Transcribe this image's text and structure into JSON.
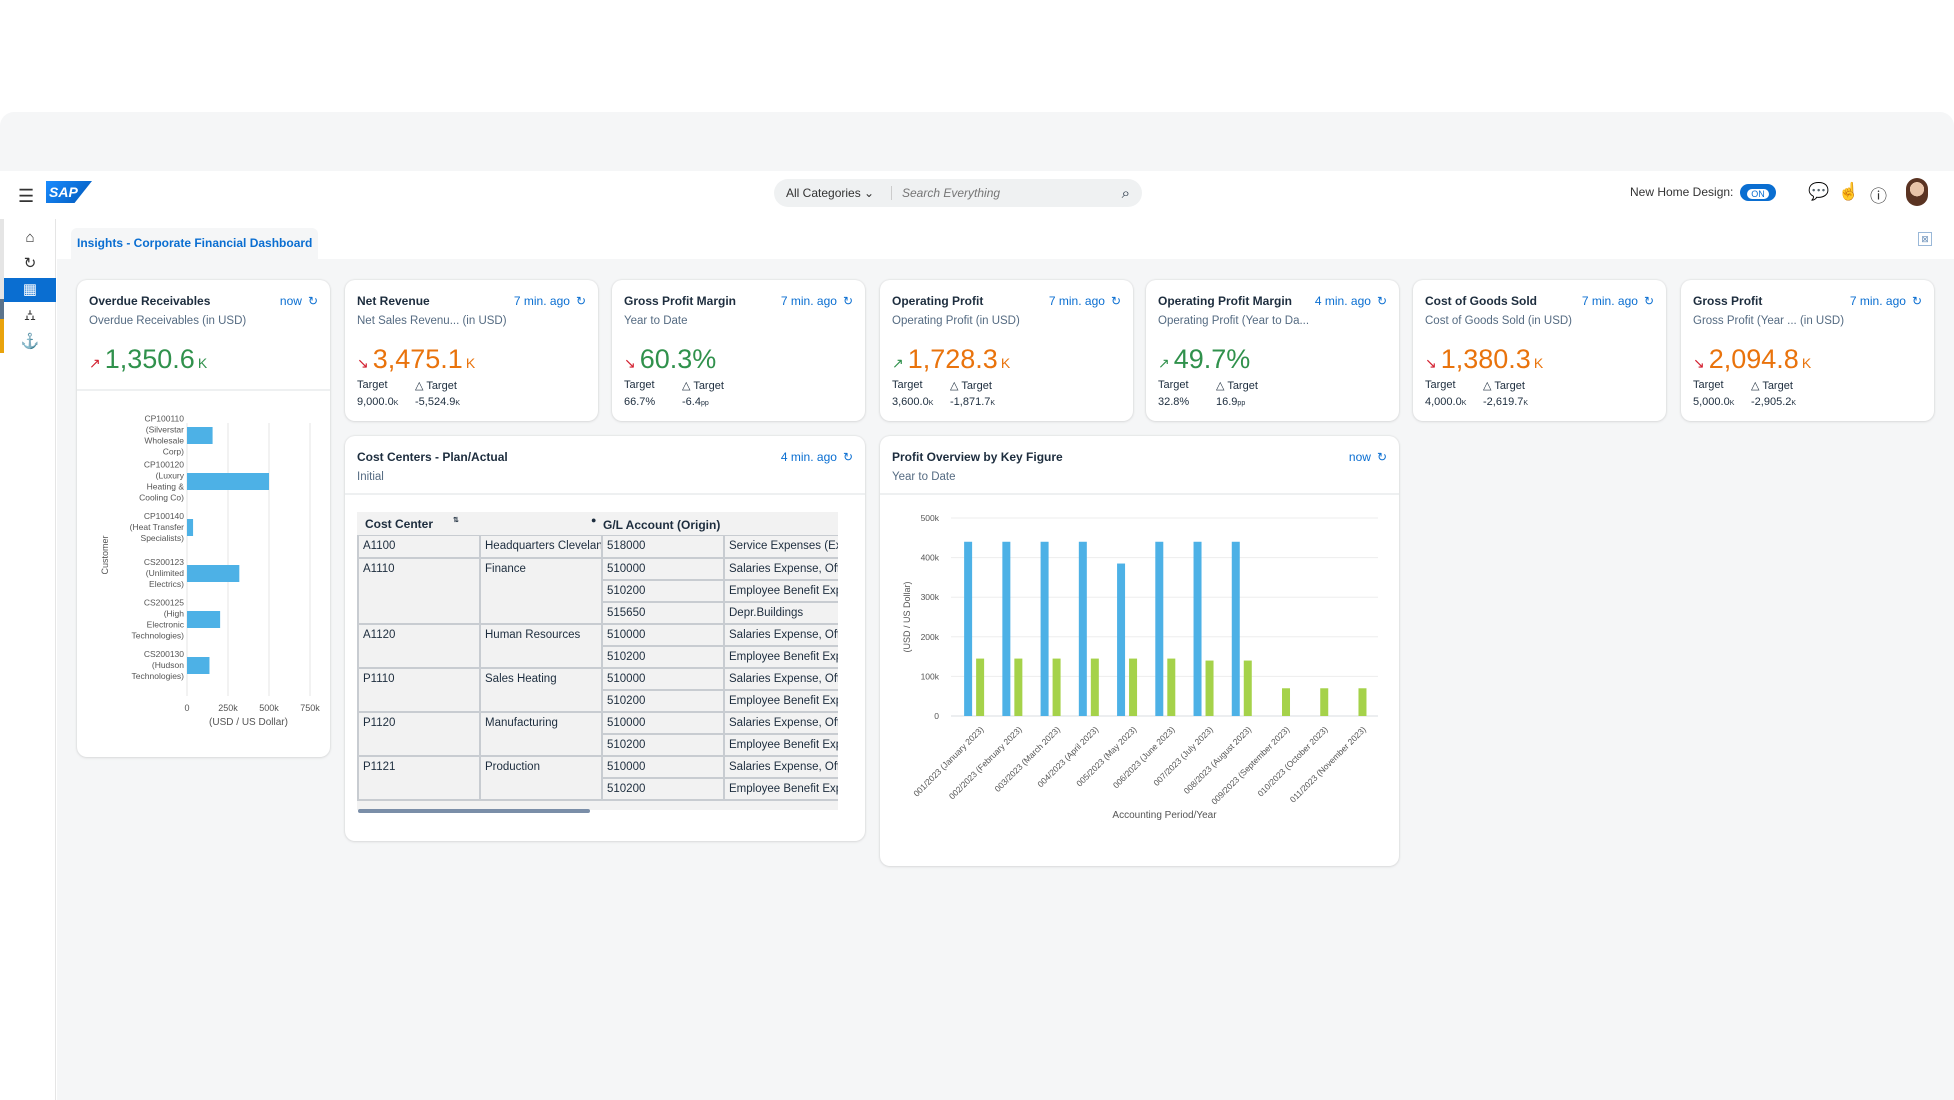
{
  "shell": {
    "search_category": "All Categories",
    "search_placeholder": "Search Everything",
    "new_home_label": "New Home Design:",
    "toggle_label": "ON"
  },
  "tab": {
    "label": "Insights - Corporate Financial Dashboard"
  },
  "colors": {
    "accent": "#0a6ed1",
    "positive": "#30914c",
    "critical": "#e9730c",
    "negative_trend": "#d32030",
    "bar_blue": "#4db1e6",
    "bar_green": "#a5d24a"
  },
  "kpis": [
    {
      "title": "Overdue Receivables",
      "subtitle": "Overdue Receivables (in USD)",
      "time": "now",
      "value": "1,350.6",
      "unit": "K",
      "trend": "up",
      "trend_color": "#d32030",
      "value_color": "#30914c"
    },
    {
      "title": "Net Revenue",
      "subtitle": "Net Sales Revenu...  (in USD)",
      "time": "7 min. ago",
      "value": "3,475.1",
      "unit": "K",
      "trend": "down",
      "trend_color": "#d32030",
      "value_color": "#e9730c",
      "target_label": "Target",
      "delta_label": "△ Target",
      "target": "9,000.0",
      "target_unit": "K",
      "delta": "-5,524.9",
      "delta_unit": "K"
    },
    {
      "title": "Gross Profit Margin",
      "subtitle": "Year to Date",
      "time": "7 min. ago",
      "value": "60.3%",
      "unit": "",
      "trend": "down",
      "trend_color": "#d32030",
      "value_color": "#30914c",
      "target_label": "Target",
      "delta_label": "△ Target",
      "target": "66.7%",
      "target_unit": "",
      "delta": "-6.4",
      "delta_unit": "pp"
    },
    {
      "title": "Operating Profit",
      "subtitle": "Operating Profit (in USD)",
      "time": "7 min. ago",
      "value": "1,728.3",
      "unit": "K",
      "trend": "up",
      "trend_color": "#30914c",
      "value_color": "#e9730c",
      "target_label": "Target",
      "delta_label": "△ Target",
      "target": "3,600.0",
      "target_unit": "K",
      "delta": "-1,871.7",
      "delta_unit": "K"
    },
    {
      "title": "Operating Profit Margin",
      "subtitle": "Operating Profit (Year to Da...",
      "time": "4 min. ago",
      "value": "49.7%",
      "unit": "",
      "trend": "up",
      "trend_color": "#30914c",
      "value_color": "#30914c",
      "target_label": "Target",
      "delta_label": "△ Target",
      "target": "32.8%",
      "target_unit": "",
      "delta": "16.9",
      "delta_unit": "pp"
    },
    {
      "title": "Cost of Goods Sold",
      "subtitle": "Cost of Goods Sold (in USD)",
      "time": "7 min. ago",
      "value": "1,380.3",
      "unit": "K",
      "trend": "down",
      "trend_color": "#d32030",
      "value_color": "#e9730c",
      "target_label": "Target",
      "delta_label": "△ Target",
      "target": "4,000.0",
      "target_unit": "K",
      "delta": "-2,619.7",
      "delta_unit": "K"
    },
    {
      "title": "Gross Profit",
      "subtitle": "Gross Profit (Year ...  (in USD)",
      "time": "7 min. ago",
      "value": "2,094.8",
      "unit": "K",
      "trend": "down",
      "trend_color": "#d32030",
      "value_color": "#e9730c",
      "target_label": "Target",
      "delta_label": "△ Target",
      "target": "5,000.0",
      "target_unit": "K",
      "delta": "-2,905.2",
      "delta_unit": "K"
    }
  ],
  "cost_centers": {
    "title": "Cost Centers - Plan/Actual",
    "subtitle": "Initial",
    "time": "4 min. ago",
    "headers": [
      "Cost Center",
      "G/L Account (Origin)"
    ],
    "rows": [
      [
        "A1100",
        "Headquarters Cleveland",
        "518000",
        "Service Expenses (Ext"
      ],
      [
        "A1110",
        "Finance",
        "510000",
        "Salaries Expense, Offi"
      ],
      [
        "",
        "",
        "510200",
        "Employee Benefit Exp"
      ],
      [
        "",
        "",
        "515650",
        "Depr.Buildings"
      ],
      [
        "A1120",
        "Human Resources",
        "510000",
        "Salaries Expense, Offi"
      ],
      [
        "",
        "",
        "510200",
        "Employee Benefit Exp"
      ],
      [
        "P1110",
        "Sales Heating",
        "510000",
        "Salaries Expense, Offi"
      ],
      [
        "",
        "",
        "510200",
        "Employee Benefit Exp"
      ],
      [
        "P1120",
        "Manufacturing",
        "510000",
        "Salaries Expense, Offi"
      ],
      [
        "",
        "",
        "510200",
        "Employee Benefit Exp"
      ],
      [
        "P1121",
        "Production",
        "510000",
        "Salaries Expense, Offi"
      ],
      [
        "",
        "",
        "510200",
        "Employee Benefit Exp"
      ]
    ]
  },
  "chart_data": [
    {
      "type": "bar",
      "orientation": "horizontal",
      "categories": [
        "CP100110 (Silverstar Wholesale Corp)",
        "CP100120 (Luxury Heating & Cooling Co)",
        "CP100140 (Heat Transfer Specialists)",
        "CS200123 (Unlimited Electrics)",
        "CS200125 (High Electronic Technologies)",
        "CS200130 (Hudson Technologies)"
      ],
      "values": [
        156000,
        500000,
        37000,
        319000,
        202000,
        137000
      ],
      "xlabel": "(USD / US Dollar)",
      "ylabel": "Customer",
      "xlim": [
        0,
        750000
      ],
      "xticks": [
        "0",
        "250k",
        "500k",
        "750k"
      ],
      "grid": true
    },
    {
      "type": "bar",
      "title": "Profit Overview by Key Figure",
      "subtitle": "Year to Date",
      "time": "now",
      "categories": [
        "001/2023 (January 2023)",
        "002/2023 (February 2023)",
        "003/2023 (March 2023)",
        "004/2023 (April 2023)",
        "005/2023 (May 2023)",
        "006/2023 (June 2023)",
        "007/2023 (July 2023)",
        "008/2023 (August 2023)",
        "009/2023 (September 2023)",
        "010/2023 (October 2023)",
        "011/2023 (November 2023)"
      ],
      "series": [
        {
          "values": [
            440000,
            440000,
            440000,
            440000,
            385000,
            440000,
            440000,
            440000,
            null,
            null,
            null
          ]
        },
        {
          "values": [
            145000,
            145000,
            145000,
            145000,
            145000,
            145000,
            140000,
            140000,
            70000,
            70000,
            70000
          ]
        }
      ],
      "xlabel": "Accounting Period/Year",
      "ylabel": "(USD / US Dollar)",
      "ylim": [
        0,
        500000
      ],
      "yticks": [
        "0",
        "100k",
        "200k",
        "300k",
        "400k",
        "500k"
      ],
      "grid": true,
      "legend": "none"
    }
  ]
}
